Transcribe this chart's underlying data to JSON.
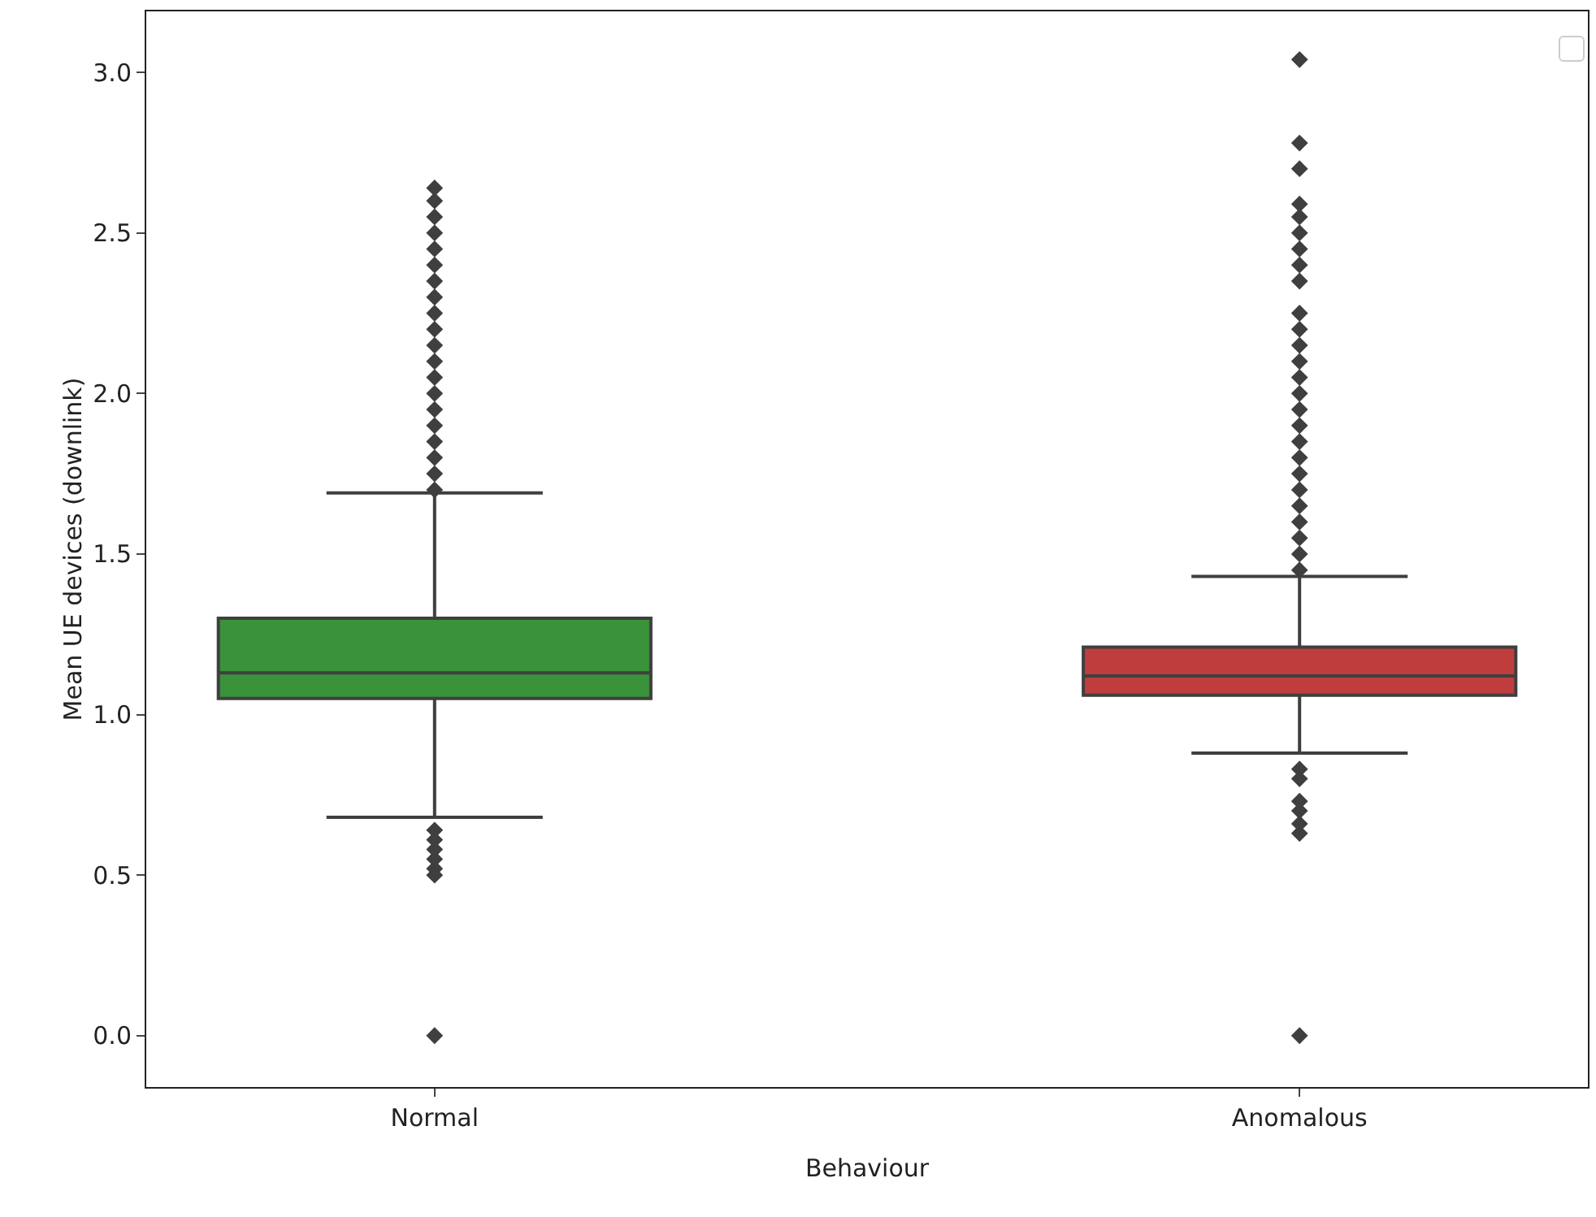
{
  "chart_data": {
    "type": "box",
    "xlabel": "Behaviour",
    "ylabel": "Mean UE devices (downlink)",
    "categories": [
      "Normal",
      "Anomalous"
    ],
    "colors": [
      "#3a923a",
      "#c03d3e"
    ],
    "boxes": [
      {
        "low": 0.68,
        "q1": 1.05,
        "median": 1.13,
        "q3": 1.3,
        "high": 1.69,
        "outliers": [
          0,
          0.5,
          0.52,
          0.55,
          0.58,
          0.61,
          0.64,
          1.7,
          1.75,
          1.8,
          1.85,
          1.9,
          1.95,
          2.0,
          2.05,
          2.1,
          2.15,
          2.2,
          2.25,
          2.3,
          2.35,
          2.4,
          2.45,
          2.5,
          2.55,
          2.6,
          2.64
        ]
      },
      {
        "low": 0.88,
        "q1": 1.06,
        "median": 1.12,
        "q3": 1.21,
        "high": 1.43,
        "outliers": [
          0,
          0.63,
          0.66,
          0.7,
          0.73,
          0.8,
          0.83,
          1.45,
          1.5,
          1.55,
          1.6,
          1.65,
          1.7,
          1.75,
          1.8,
          1.85,
          1.9,
          1.95,
          2.0,
          2.05,
          2.1,
          2.15,
          2.2,
          2.25,
          2.35,
          2.4,
          2.45,
          2.5,
          2.55,
          2.59,
          2.7,
          2.78,
          3.04
        ]
      }
    ],
    "ylim": [
      -0.16,
      3.19
    ],
    "yticks": [
      {
        "value": 0,
        "label": "0.0"
      },
      {
        "value": 0.5,
        "label": "0.5"
      },
      {
        "value": 1,
        "label": "1.0"
      },
      {
        "value": 1.5,
        "label": "1.5"
      },
      {
        "value": 2,
        "label": "2.0"
      },
      {
        "value": 2.5,
        "label": "2.5"
      },
      {
        "value": 3,
        "label": "3.0"
      }
    ],
    "marker": "diamond",
    "grid": false
  }
}
